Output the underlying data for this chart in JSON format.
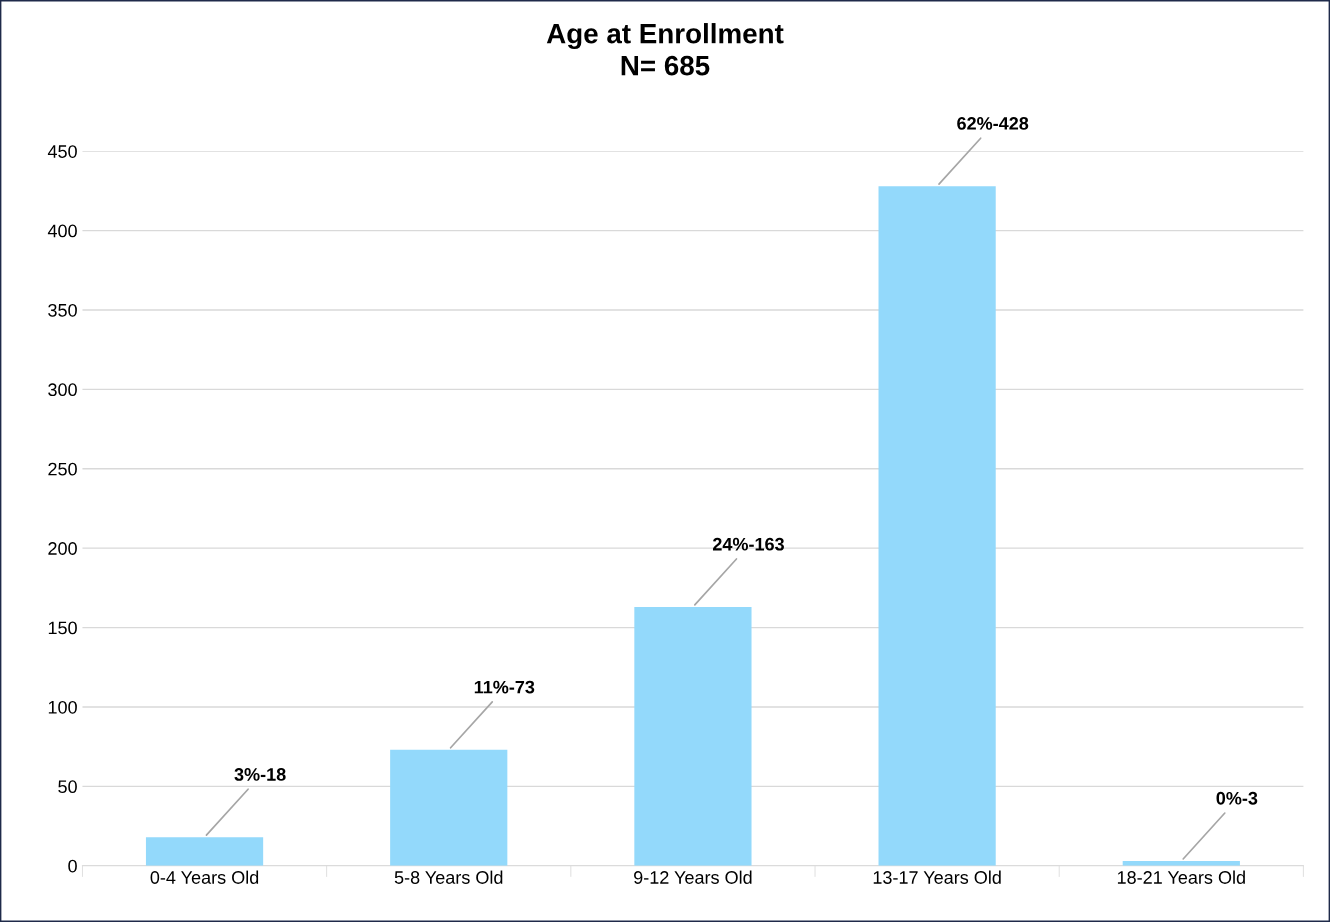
{
  "chart_data": {
    "type": "bar",
    "title": "Age at Enrollment\nN= 685",
    "categories": [
      "0-4 Years Old",
      "5-8 Years Old",
      "9-12 Years Old",
      "13-17 Years Old",
      "18-21 Years Old"
    ],
    "values": [
      18,
      73,
      163,
      428,
      3
    ],
    "annotations": [
      {
        "text": "3%-18",
        "x": "0-4 Years Old",
        "y": 18
      },
      {
        "text": "11%-73",
        "x": "5-8 Years Old",
        "y": 73
      },
      {
        "text": "24%-163",
        "x": "9-12 Years Old",
        "y": 163
      },
      {
        "text": "62%-428",
        "x": "13-17 Years Old",
        "y": 428
      },
      {
        "text": "0%-3",
        "x": "18-21 Years Old",
        "y": 3
      }
    ],
    "color": "#93d9fb",
    "ylim": [
      0,
      450
    ],
    "yticks": [
      0,
      50,
      100,
      150,
      200,
      250,
      300,
      350,
      400,
      450
    ],
    "grid": "y",
    "legend": false
  }
}
